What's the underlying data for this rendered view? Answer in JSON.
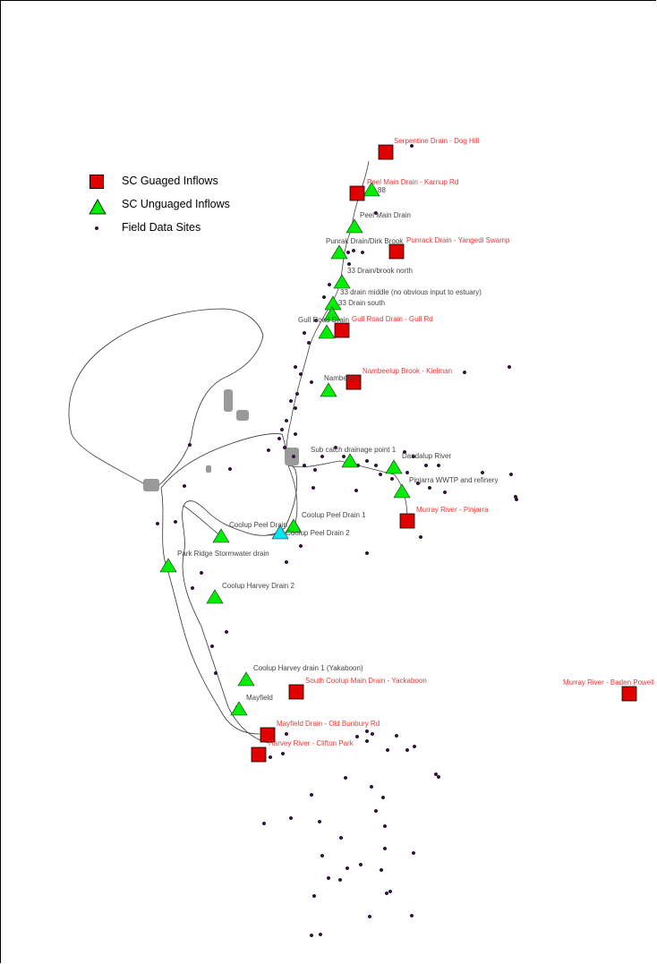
{
  "legend": {
    "gauged_label": "SC Guaged Inflows",
    "ungauged_label": "SC Unguaged Inflows",
    "field_label": "Field Data Sites"
  },
  "colors": {
    "gauged_fill": "#e00000",
    "ungauged_fill": "#00ee00",
    "highlight_fill": "#00e5ee",
    "gauged_label": "#e23a3a",
    "ungauged_label": "#444444",
    "field_dot": "#3a0a4a"
  },
  "gauged_sites": [
    "Serpentine Drain - Dog Hill",
    "Peel Main Drain - Karnup Rd",
    "Punrack Drain - Yangedi Swamp",
    "Gull Road Drain - Gull Rd",
    "Nambeelup Brook - Kielman",
    "Murray River - Pinjarra",
    "South Coolup Main Drain - Yackaboon",
    "Murray River - Baden Powell",
    "Mayfield Drain - Old Bunbury Rd",
    "Harvey River - Clifton Park"
  ],
  "ungauged_sites": [
    "88",
    "Peel Main Drain",
    "Punrak Drain/Dirk Brook",
    "33 Drain/brook north",
    "33 drain middle (no obvious input to estuary)",
    "33 Drain south",
    "Gull Road Drain",
    "Nambeelup",
    "Sub catch drainage point 1",
    "Dandalup River",
    "Pinjarra WWTP and refinery",
    "Coolup Peel Drain 1",
    "Coolup Peel Drain",
    "Coolup Peel Drain 2",
    "Park Ridge Stormwater drain",
    "Coolup Harvey Drain 2",
    "Coolup Harvey drain 1 (Yakaboon)",
    "Mayfield"
  ]
}
